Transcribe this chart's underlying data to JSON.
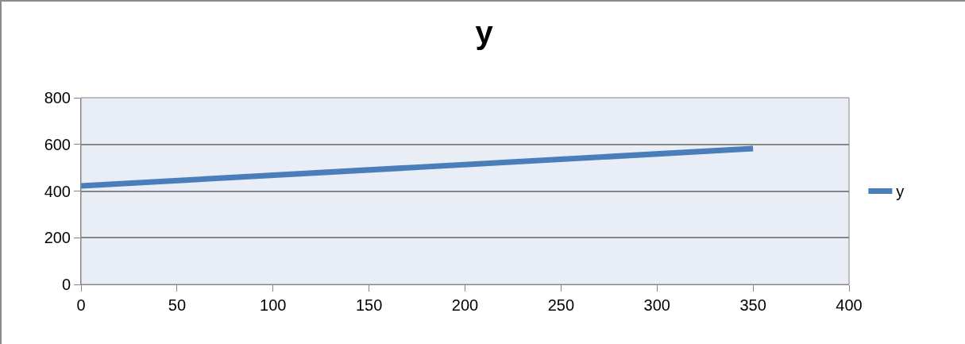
{
  "chart_data": {
    "type": "line",
    "title": "y",
    "x": [
      0,
      350
    ],
    "series": [
      {
        "name": "y",
        "color": "#4a7ebb",
        "values": [
          422,
          582
        ]
      }
    ],
    "xlim": [
      0,
      400
    ],
    "xticks": [
      0,
      50,
      100,
      150,
      200,
      250,
      300,
      350,
      400
    ],
    "ylim": [
      0,
      800
    ],
    "yticks": [
      0,
      200,
      400,
      600,
      800
    ],
    "grid": "y",
    "legend": "right",
    "marker": "none",
    "line_style": "solid"
  }
}
